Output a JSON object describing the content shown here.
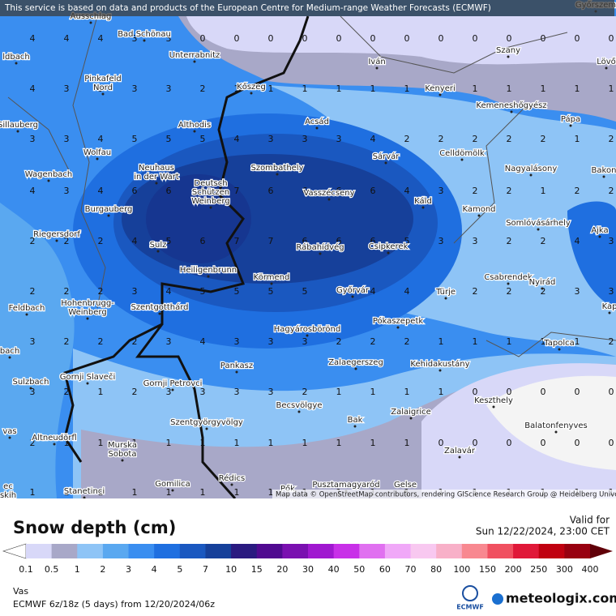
{
  "banner": "This service is based on data and products of the European Centre for Medium-range Weather Forecasts (ECMWF)",
  "map": {
    "attribution": "Map data © OpenStreetMap contributors, rendering GIScience Research Group @ Heidelberg University",
    "places": [
      [
        "Ausschlag"
      ],
      [
        "Bad Schönau"
      ],
      [
        "Unterrabnitz"
      ],
      [
        "Pinkafeld",
        "Nord"
      ],
      [
        "Kőszeg"
      ],
      [
        "Iván"
      ],
      [
        "Szany"
      ],
      [
        "Lövő"
      ],
      [
        "Kenyeri"
      ],
      [
        "Kemeneshőgyész"
      ],
      [
        "Győrszem"
      ],
      [
        "ldbach"
      ],
      [
        "Sillauberg"
      ],
      [
        "Althodis"
      ],
      [
        "Acsád"
      ],
      [
        "Pápa"
      ],
      [
        "Wolfau"
      ],
      [
        "Sárvár"
      ],
      [
        "Celldömölk"
      ],
      [
        "Neuhaus",
        "in der Wart"
      ],
      [
        "Szombathely"
      ],
      [
        "Nagyalásony"
      ],
      [
        "Bakon"
      ],
      [
        "Wagenbach"
      ],
      [
        "Deutsch",
        "Schützen",
        "Weinberg"
      ],
      [
        "Vasszécseny"
      ],
      [
        "Káld"
      ],
      [
        "Burgauberg"
      ],
      [
        "Kamond"
      ],
      [
        "Somlóvásárhely"
      ],
      [
        "Ajka"
      ],
      [
        "Riegersdorf"
      ],
      [
        "Sulz"
      ],
      [
        "Rábahídvég"
      ],
      [
        "Csipkerek"
      ],
      [
        "Heiligenbrunn"
      ],
      [
        "Körmend"
      ],
      [
        "Csabrendek"
      ],
      [
        "Nyirád"
      ],
      [
        "Feldbach"
      ],
      [
        "Hohenbrugg-",
        "Weinberg"
      ],
      [
        "Szentgotthárd"
      ],
      [
        "Győrvár"
      ],
      [
        "Türje"
      ],
      [
        "Kap"
      ],
      [
        "Pókaszepetk"
      ],
      [
        "Hagyárosbörönd"
      ],
      [
        "bach"
      ],
      [
        "Tapolca"
      ],
      [
        "Zalaegerszeg"
      ],
      [
        "Kehidakustány"
      ],
      [
        "Pankasz"
      ],
      [
        "Sulzbach"
      ],
      [
        "Gornji Slaveči"
      ],
      [
        "Gornji Petrovci"
      ],
      [
        "Keszthely"
      ],
      [
        "Becsvölgye"
      ],
      [
        "Zalaigrice"
      ],
      [
        "Bak"
      ],
      [
        "Szentgyörgyvölgy"
      ],
      [
        "Balatonfenyves"
      ],
      [
        "vas"
      ],
      [
        "Altneudörfl"
      ],
      [
        "Murska",
        "Sobota"
      ],
      [
        "Zalavár"
      ],
      [
        "Gomilica"
      ],
      [
        "Rédics"
      ],
      [
        "Pusztamagyaród"
      ],
      [
        "Gelse"
      ],
      [
        "Stanetinci"
      ],
      [
        "Pők"
      ],
      [
        "ec",
        "skih"
      ]
    ],
    "values": [
      [
        4,
        4,
        4,
        3,
        3,
        0,
        0,
        0,
        0,
        0,
        0,
        0,
        0,
        0,
        0,
        0,
        0,
        0
      ],
      [
        4,
        3,
        3,
        3,
        3,
        2,
        1,
        1,
        1,
        1,
        1,
        1,
        1,
        1,
        1,
        1,
        1,
        1
      ],
      [
        3,
        3,
        4,
        5,
        5,
        5,
        4,
        3,
        3,
        3,
        4,
        2,
        2,
        2,
        2,
        2,
        1,
        2
      ],
      [
        4,
        3,
        4,
        6,
        6,
        6,
        7,
        6,
        6,
        6,
        6,
        4,
        3,
        2,
        2,
        1,
        2,
        2
      ],
      [
        2,
        2,
        2,
        4,
        5,
        6,
        7,
        7,
        6,
        6,
        6,
        5,
        3,
        3,
        2,
        2,
        4,
        3
      ],
      [
        2,
        2,
        2,
        3,
        4,
        5,
        5,
        5,
        5,
        4,
        4,
        4,
        2,
        2,
        2,
        2,
        3,
        3
      ],
      [
        3,
        2,
        2,
        2,
        3,
        4,
        3,
        3,
        3,
        2,
        2,
        2,
        1,
        1,
        1,
        1,
        1,
        2
      ],
      [
        3,
        2,
        1,
        2,
        3,
        3,
        3,
        3,
        2,
        1,
        1,
        1,
        1,
        0,
        0,
        0,
        0,
        0
      ],
      [
        2,
        1,
        1,
        1,
        1,
        1,
        1,
        1,
        1,
        1,
        1,
        1,
        0,
        0,
        0,
        0,
        0,
        0
      ],
      [
        1,
        1,
        1,
        1,
        1,
        1,
        1,
        1,
        1,
        1,
        1,
        1,
        1,
        1,
        1,
        1,
        1,
        1
      ]
    ]
  },
  "legend": {
    "title": "Snow depth (cm)",
    "ticks": [
      "0.1",
      "0.5",
      "1",
      "2",
      "3",
      "4",
      "5",
      "7",
      "10",
      "15",
      "20",
      "30",
      "40",
      "50",
      "60",
      "70",
      "80",
      "100",
      "150",
      "200",
      "250",
      "300",
      "400"
    ],
    "colors": [
      "#ffffff",
      "#d8d8f8",
      "#a8a8c8",
      "#8ec4f6",
      "#5aa8f0",
      "#3a8ef0",
      "#1f6fe0",
      "#1a58c0",
      "#16409a",
      "#2a1a80",
      "#500a90",
      "#7a10b0",
      "#a018d0",
      "#c830e8",
      "#e070f0",
      "#f0a8f8",
      "#f8c8f0",
      "#f8b0c8",
      "#f88890",
      "#f05060",
      "#e01838",
      "#c00010",
      "#980010",
      "#600008"
    ]
  },
  "valid_label": "Valid for",
  "valid_time": "Sun 12/22/2024, 23:00 CET",
  "region": "Vas",
  "model": "ECMWF 6z/18z (5 days) from 12/20/2024/06z",
  "logo": "ECMWF",
  "brand": "meteologix.com"
}
